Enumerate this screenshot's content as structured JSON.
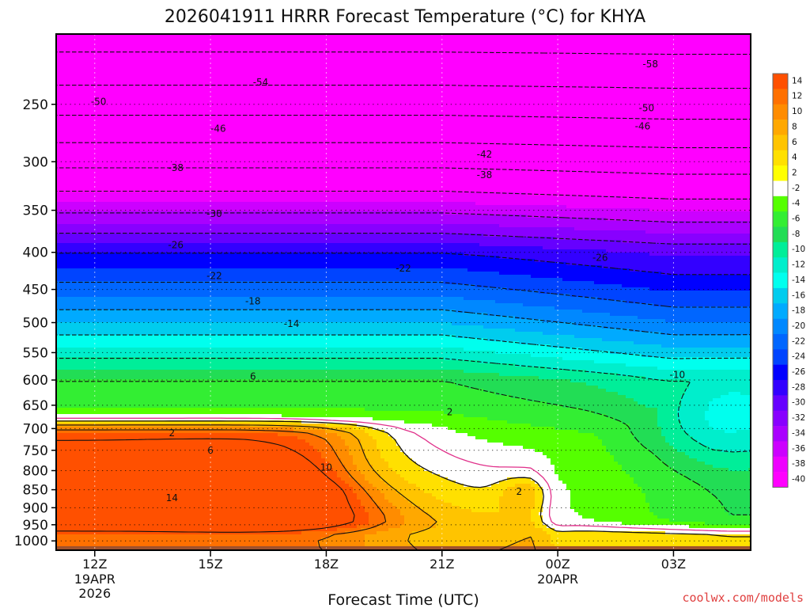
{
  "chart_data": {
    "type": "heatmap",
    "title": "2026041911 HRRR Forecast Temperature (°C) for KHYA",
    "xlabel": "Forecast Time (UTC)",
    "ylabel": "",
    "credit": "coolwx.com/models",
    "x_ticks": [
      {
        "hour": 0,
        "label": "12Z",
        "sub1": "19APR",
        "sub2": "2026"
      },
      {
        "hour": 3,
        "label": "15Z",
        "sub1": "",
        "sub2": ""
      },
      {
        "hour": 6,
        "label": "18Z",
        "sub1": "",
        "sub2": ""
      },
      {
        "hour": 9,
        "label": "21Z",
        "sub1": "",
        "sub2": ""
      },
      {
        "hour": 12,
        "label": "00Z",
        "sub1": "20APR",
        "sub2": ""
      },
      {
        "hour": 15,
        "label": "03Z",
        "sub1": "",
        "sub2": ""
      }
    ],
    "xlim": [
      -1,
      17
    ],
    "y_ticks": [
      250,
      300,
      350,
      400,
      450,
      500,
      550,
      600,
      650,
      700,
      750,
      800,
      850,
      900,
      950,
      1000
    ],
    "ylim": [
      1030,
      200
    ],
    "y_scale": "log-pressure (hPa)",
    "colorbar": {
      "labels": [
        "14",
        "12",
        "10",
        "8",
        "6",
        "4",
        "2",
        "-2",
        "-4",
        "-6",
        "-8",
        "-10",
        "-12",
        "-14",
        "-16",
        "-18",
        "-20",
        "-22",
        "-24",
        "-26",
        "-28",
        "-30",
        "-32",
        "-34",
        "-36",
        "-38",
        "-40"
      ],
      "colors": [
        "#ff5000",
        "#ff7000",
        "#ff8c00",
        "#ffa800",
        "#ffc400",
        "#ffe000",
        "#ffff00",
        "#ffffff",
        "#55ff00",
        "#33ee33",
        "#22dd55",
        "#00ee99",
        "#00eecc",
        "#00ffee",
        "#00ccee",
        "#00aaff",
        "#0088ff",
        "#0066ff",
        "#0044ff",
        "#0000ff",
        "#3300ff",
        "#6600ff",
        "#8800ff",
        "#aa00ff",
        "#cc00ff",
        "#ee00ff",
        "#ff00ff"
      ]
    },
    "contour_labels": [
      {
        "text": "-58",
        "hour": 14.4,
        "p": 220
      },
      {
        "text": "-54",
        "hour": 4.3,
        "p": 233
      },
      {
        "text": "-50",
        "hour": 0.1,
        "p": 248
      },
      {
        "text": "-50",
        "hour": 14.3,
        "p": 253
      },
      {
        "text": "-46",
        "hour": 3.2,
        "p": 270
      },
      {
        "text": "-46",
        "hour": 14.2,
        "p": 268
      },
      {
        "text": "-42",
        "hour": 10.1,
        "p": 293
      },
      {
        "text": "-38",
        "hour": 2.1,
        "p": 306
      },
      {
        "text": "-38",
        "hour": 10.1,
        "p": 313
      },
      {
        "text": "-30",
        "hour": 3.1,
        "p": 354
      },
      {
        "text": "-26",
        "hour": 2.1,
        "p": 391
      },
      {
        "text": "-26",
        "hour": 13.1,
        "p": 407
      },
      {
        "text": "-22",
        "hour": 3.1,
        "p": 431
      },
      {
        "text": "-22",
        "hour": 8.0,
        "p": 421
      },
      {
        "text": "-18",
        "hour": 4.1,
        "p": 467
      },
      {
        "text": "-14",
        "hour": 5.1,
        "p": 502
      },
      {
        "text": "-10",
        "hour": 15.1,
        "p": 590
      },
      {
        "text": "6",
        "hour": 4.1,
        "p": 593
      },
      {
        "text": "2",
        "hour": 9.2,
        "p": 664
      },
      {
        "text": "2",
        "hour": 2.0,
        "p": 710
      },
      {
        "text": "6",
        "hour": 3.0,
        "p": 750
      },
      {
        "text": "10",
        "hour": 6.0,
        "p": 792
      },
      {
        "text": "14",
        "hour": 2.0,
        "p": 873
      },
      {
        "text": "2",
        "hour": 11.0,
        "p": 855
      }
    ]
  }
}
